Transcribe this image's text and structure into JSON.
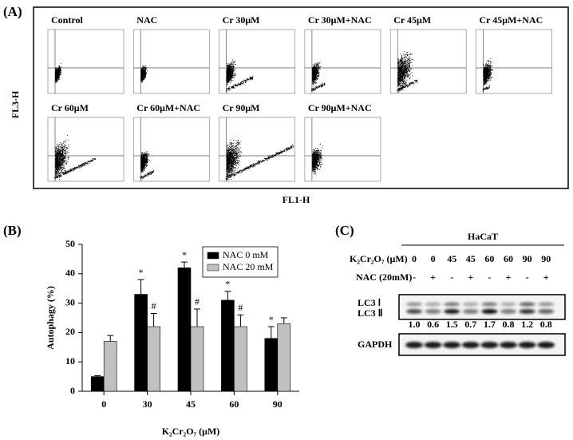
{
  "panel_a": {
    "label": "(A)",
    "y_label": "FL3-H",
    "x_label": "FL1-H",
    "plots": [
      "Control",
      "NAC",
      "Cr 30μM",
      "Cr 30μM+NAC",
      "Cr 45μM",
      "Cr 45μM+NAC",
      "Cr 60μM",
      "Cr 60μM+NAC",
      "Cr 90μM",
      "Cr 90μM+NAC"
    ]
  },
  "panel_b_label": "(B)",
  "chart_data": {
    "type": "bar",
    "y_label": "Autophagy (%)",
    "x_label": "K₂Cr₂O₇ (μM)",
    "categories": [
      "0",
      "30",
      "45",
      "60",
      "90"
    ],
    "series": [
      {
        "name": "NAC 0 mM",
        "color": "#000000",
        "values": [
          5,
          33,
          42,
          31,
          18
        ],
        "errors": [
          0.3,
          5,
          2,
          3,
          4
        ],
        "marks": [
          null,
          "*",
          "*",
          "*",
          "*"
        ]
      },
      {
        "name": "NAC 20 mM",
        "color": "#c0c0c0",
        "values": [
          17,
          22,
          22,
          22,
          23
        ],
        "errors": [
          2,
          4.5,
          6,
          4,
          2
        ],
        "marks": [
          null,
          "#",
          "#",
          "#",
          null
        ]
      }
    ],
    "ylim": [
      0,
      50
    ],
    "yticks": [
      0,
      10,
      20,
      30,
      40,
      50
    ],
    "legend": "upper right"
  },
  "panel_c": {
    "label": "(C)",
    "cell_line": "HaCaT",
    "dose_label": "K₂Cr₂O₇ (μM)",
    "doses": [
      "0",
      "0",
      "45",
      "45",
      "60",
      "60",
      "90",
      "90"
    ],
    "nac_label": "NAC (20mM)",
    "nac": [
      "-",
      "+",
      "-",
      "+",
      "-",
      "+",
      "-",
      "+"
    ],
    "lc3_1": "LC3 Ⅰ",
    "lc3_2": "LC3 Ⅱ",
    "ratios": [
      "1.0",
      "0.6",
      "1.5",
      "0.7",
      "1.7",
      "0.8",
      "1.2",
      "0.8"
    ],
    "gapdh": "GAPDH"
  }
}
